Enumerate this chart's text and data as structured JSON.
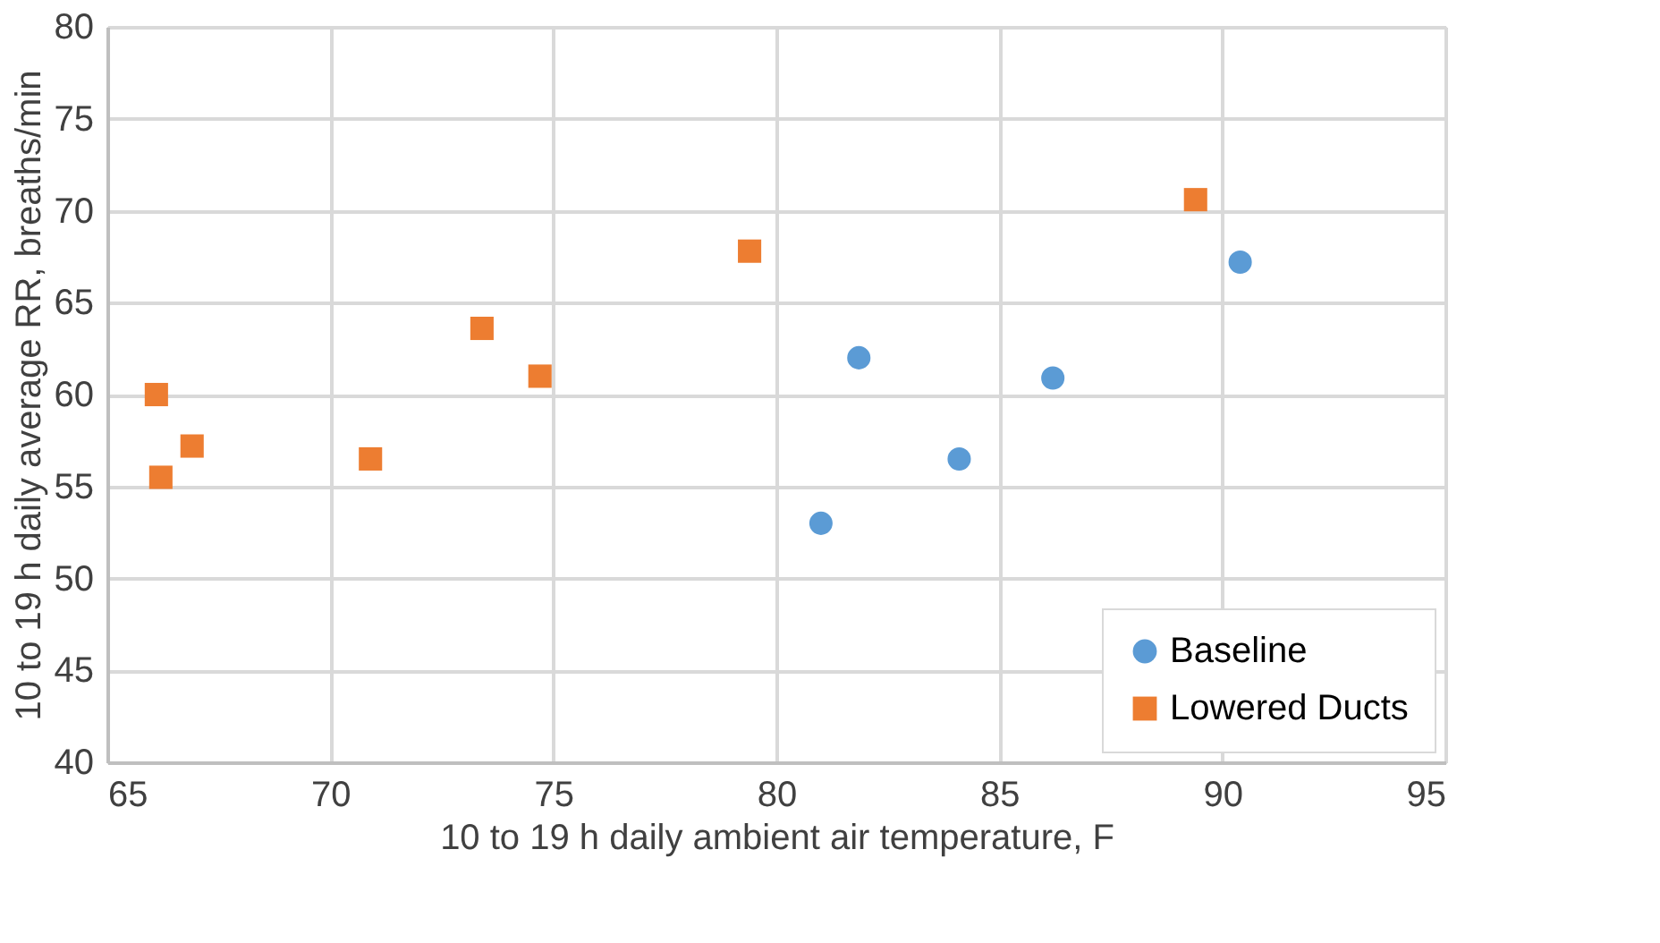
{
  "chart_data": {
    "type": "scatter",
    "xlabel": "10 to 19 h daily ambient air temperature, F",
    "ylabel": "10 to 19 h daily average RR, breaths/min",
    "series": [
      {
        "name": "Baseline",
        "color": "#5b9bd5",
        "marker": "circle",
        "x": [
          90.4,
          81.85,
          86.2,
          84.1,
          81.0
        ],
        "values": [
          67.2,
          62.0,
          60.9,
          56.5,
          53.0
        ]
      },
      {
        "name": "Lowered Ducts",
        "color": "#ed7d31",
        "marker": "square",
        "x": [
          89.4,
          79.4,
          73.4,
          74.7,
          66.1,
          66.9,
          66.2,
          70.9
        ],
        "values": [
          70.6,
          67.8,
          63.6,
          61.0,
          60.0,
          57.2,
          55.5,
          56.5
        ]
      }
    ],
    "xlim": [
      65,
      95
    ],
    "xticks": [
      65,
      70,
      75,
      80,
      85,
      90,
      95
    ],
    "ylim": [
      40,
      80
    ],
    "yticks": [
      40,
      45,
      50,
      55,
      60,
      65,
      70,
      75,
      80
    ],
    "grid": true,
    "legend": "bottom right"
  }
}
